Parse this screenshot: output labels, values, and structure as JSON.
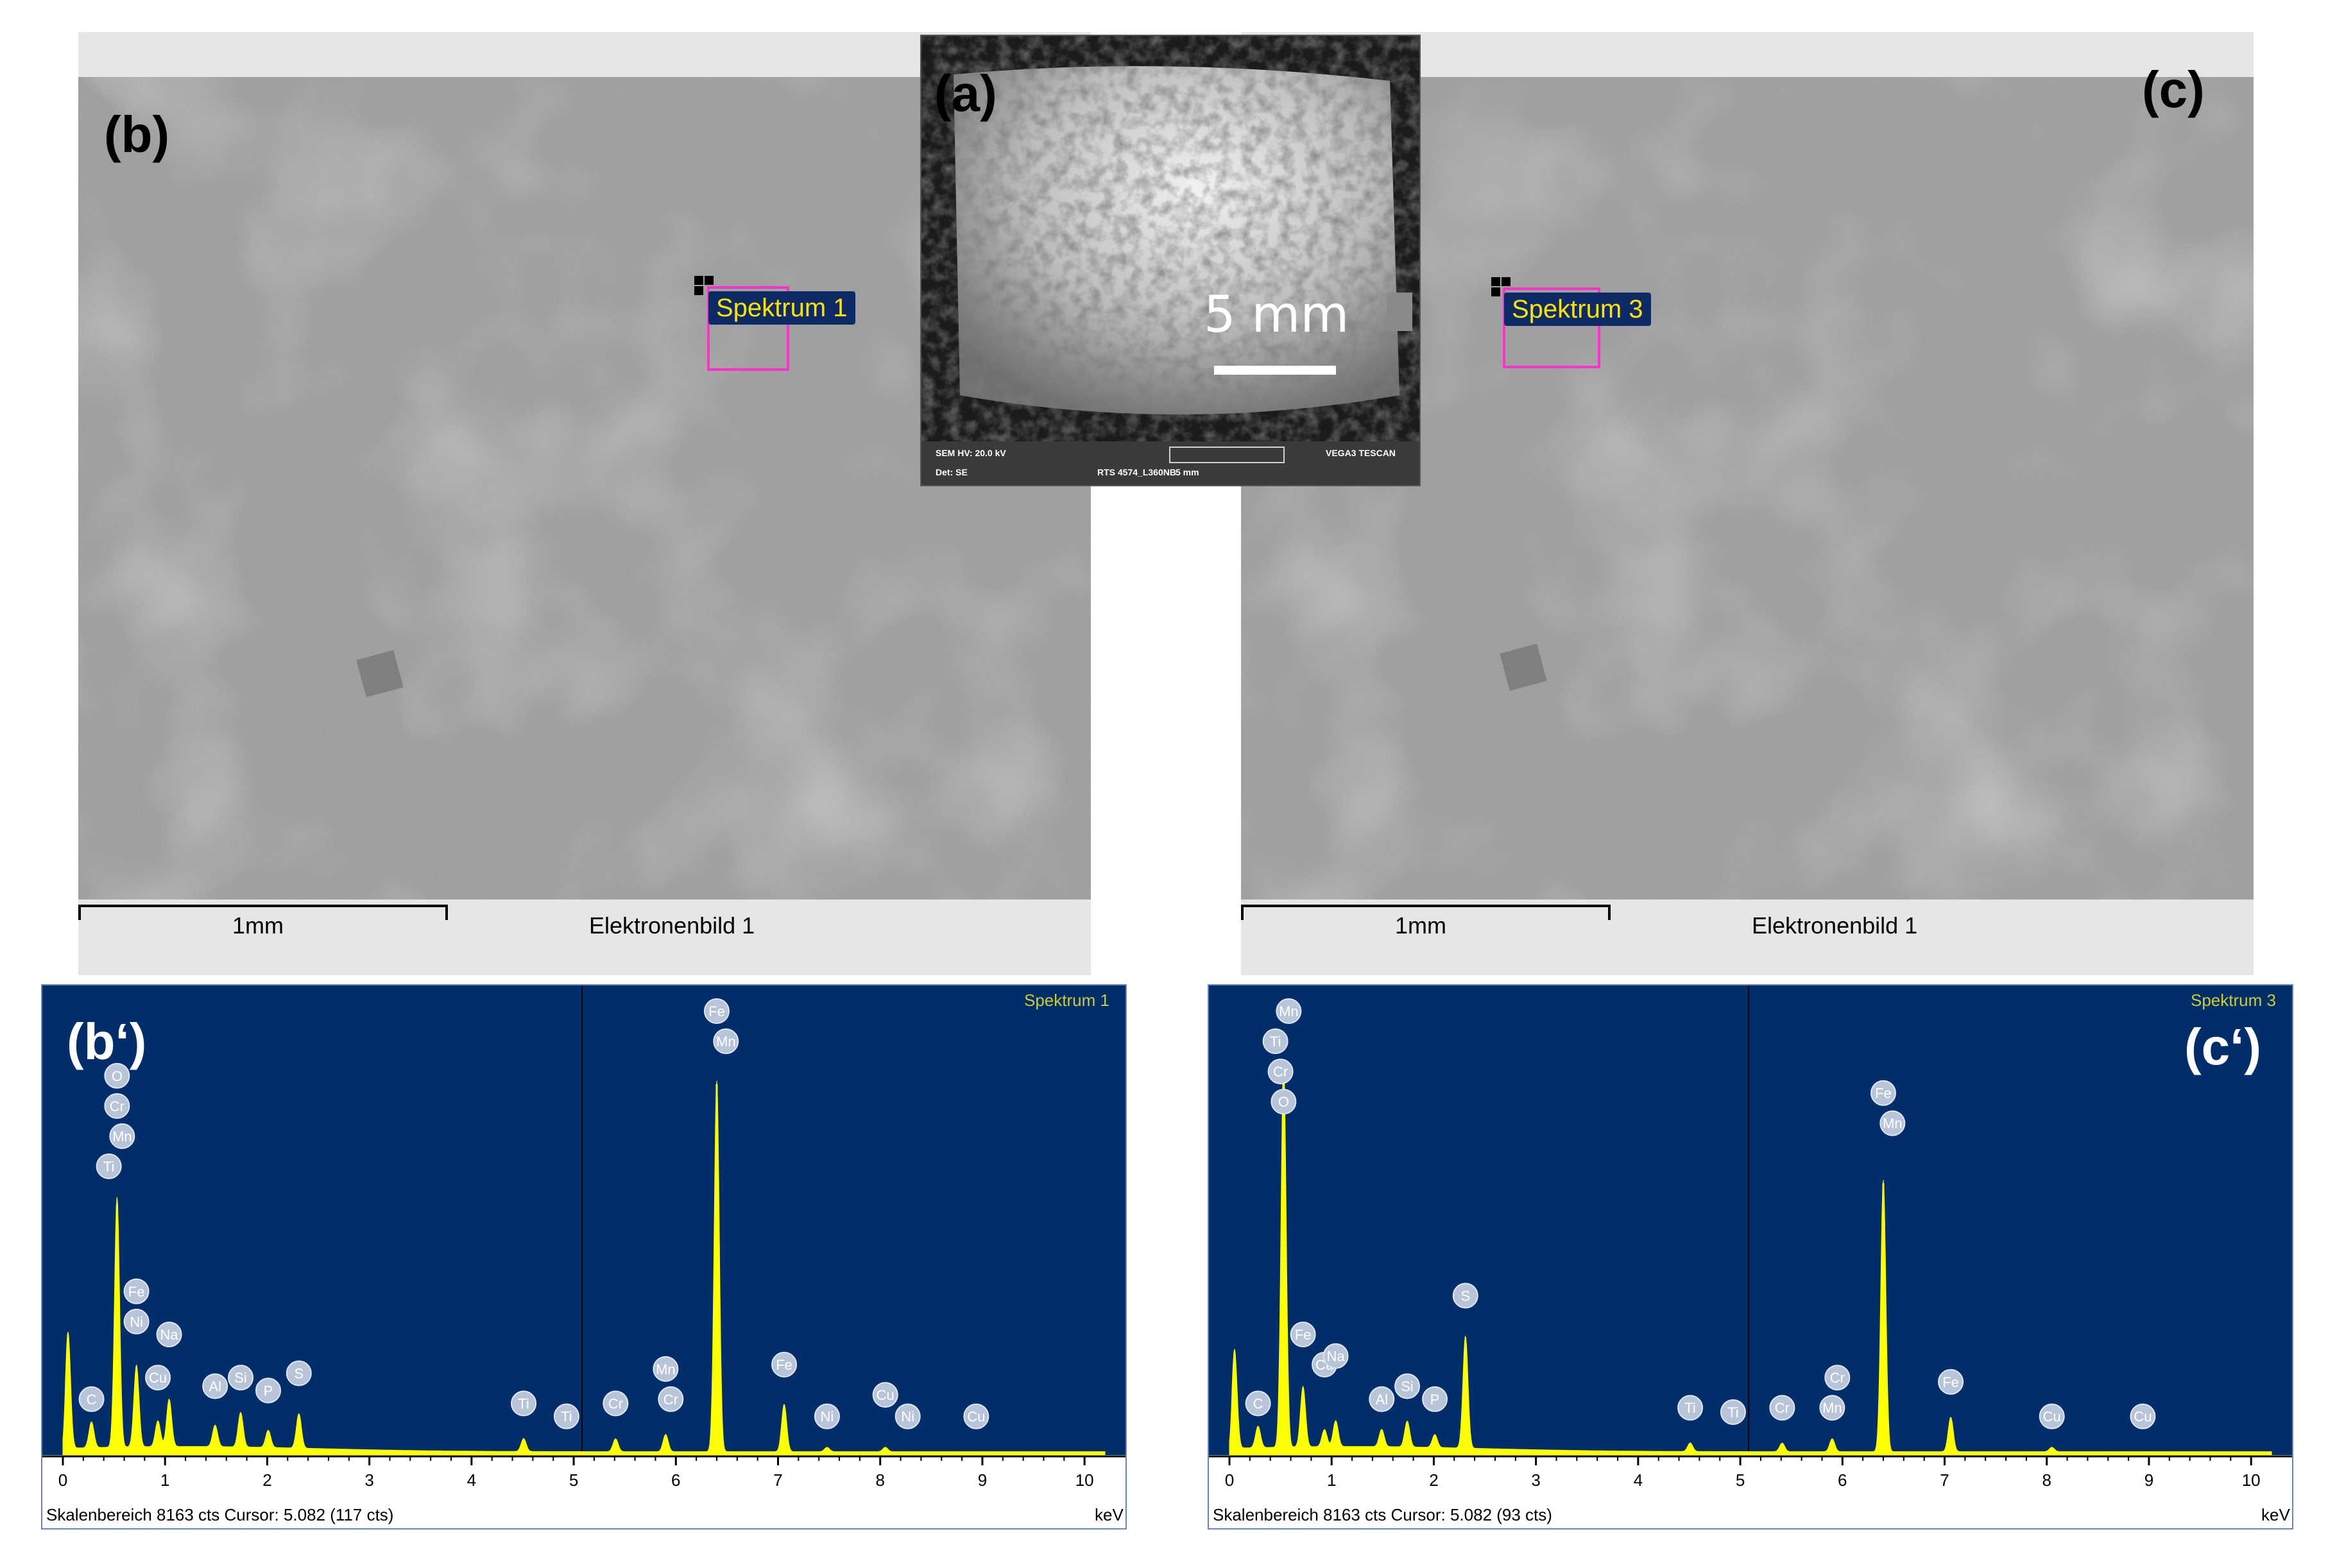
{
  "panels": {
    "a": {
      "letter": "(a)",
      "scale_text": "5 mm",
      "info": {
        "sem_hv": "SEM HV: 20.0 kV",
        "det": "Det: SE",
        "name": "RTS 4574_L360NB",
        "view": "5 mm",
        "device": "VEGA3 TESCAN"
      }
    },
    "b": {
      "letter": "(b)",
      "spectrum_label": "Spektrum  1",
      "scale_text": "1mm",
      "image_name": "Elektronenbild  1"
    },
    "c": {
      "letter": "(c)",
      "spectrum_label": "Spektrum  3",
      "scale_text": "1mm",
      "image_name": "Elektronenbild  1"
    }
  },
  "spectra": {
    "b_prime": {
      "letter": "(b‘)",
      "title": "Spektrum  1",
      "status": "Skalenbereich 8163 cts Cursor: 5.082  (117 cts)",
      "unit": "keV"
    },
    "c_prime": {
      "letter": "(c‘)",
      "title": "Spektrum  3",
      "status": "Skalenbereich 8163 cts Cursor: 5.082  (93 cts)",
      "unit": "keV"
    }
  },
  "colors": {
    "plot_bg": "#012e6b",
    "peak": "#ffff00",
    "title": "#cccc33",
    "marker": "#ff33cc"
  },
  "chart_data": [
    {
      "type": "area",
      "x_label": "keV",
      "xlim": [
        0,
        10.2
      ],
      "ticks": [
        "0",
        "1",
        "2",
        "3",
        "4",
        "5",
        "6",
        "7",
        "8",
        "9",
        "10"
      ],
      "cursor": 5.082,
      "peaks": [
        {
          "x": 0.05,
          "h": 0.27,
          "w": 0.035
        },
        {
          "x": 0.28,
          "h": 0.06,
          "w": 0.035
        },
        {
          "x": 0.53,
          "h": 0.58,
          "w": 0.035
        },
        {
          "x": 0.72,
          "h": 0.19,
          "w": 0.035
        },
        {
          "x": 0.93,
          "h": 0.06,
          "w": 0.035
        },
        {
          "x": 1.04,
          "h": 0.11,
          "w": 0.035
        },
        {
          "x": 1.49,
          "h": 0.05,
          "w": 0.035
        },
        {
          "x": 1.74,
          "h": 0.08,
          "w": 0.035
        },
        {
          "x": 2.01,
          "h": 0.04,
          "w": 0.035
        },
        {
          "x": 2.31,
          "h": 0.08,
          "w": 0.035
        },
        {
          "x": 4.51,
          "h": 0.03,
          "w": 0.035
        },
        {
          "x": 5.41,
          "h": 0.03,
          "w": 0.035
        },
        {
          "x": 5.9,
          "h": 0.04,
          "w": 0.035
        },
        {
          "x": 6.4,
          "h": 0.86,
          "w": 0.035
        },
        {
          "x": 7.06,
          "h": 0.11,
          "w": 0.035
        },
        {
          "x": 7.48,
          "h": 0.01,
          "w": 0.035
        },
        {
          "x": 8.05,
          "h": 0.01,
          "w": 0.035
        }
      ],
      "labels": [
        {
          "text": "C",
          "x": 0.28,
          "h": 0.1
        },
        {
          "text": "O",
          "x": 0.53,
          "h": 0.85
        },
        {
          "text": "Cr",
          "x": 0.53,
          "h": 0.78
        },
        {
          "text": "Mn",
          "x": 0.58,
          "h": 0.71
        },
        {
          "text": "Ti",
          "x": 0.45,
          "h": 0.64
        },
        {
          "text": "Fe",
          "x": 0.72,
          "h": 0.35
        },
        {
          "text": "Ni",
          "x": 0.72,
          "h": 0.28
        },
        {
          "text": "Cu",
          "x": 0.93,
          "h": 0.15
        },
        {
          "text": "Na",
          "x": 1.04,
          "h": 0.25
        },
        {
          "text": "Al",
          "x": 1.49,
          "h": 0.13
        },
        {
          "text": "Si",
          "x": 1.74,
          "h": 0.15
        },
        {
          "text": "P",
          "x": 2.01,
          "h": 0.12
        },
        {
          "text": "S",
          "x": 2.31,
          "h": 0.16
        },
        {
          "text": "Ti",
          "x": 4.51,
          "h": 0.09
        },
        {
          "text": "Ti",
          "x": 4.93,
          "h": 0.06
        },
        {
          "text": "Cr",
          "x": 5.41,
          "h": 0.09
        },
        {
          "text": "Mn",
          "x": 5.9,
          "h": 0.17
        },
        {
          "text": "Cr",
          "x": 5.95,
          "h": 0.1
        },
        {
          "text": "Fe",
          "x": 6.4,
          "h": 1.0
        },
        {
          "text": "Mn",
          "x": 6.49,
          "h": 0.93
        },
        {
          "text": "Fe",
          "x": 7.06,
          "h": 0.18
        },
        {
          "text": "Ni",
          "x": 7.48,
          "h": 0.06
        },
        {
          "text": "Cu",
          "x": 8.05,
          "h": 0.11
        },
        {
          "text": "Ni",
          "x": 8.27,
          "h": 0.06
        },
        {
          "text": "Cu",
          "x": 8.94,
          "h": 0.06
        }
      ]
    },
    {
      "type": "area",
      "x_label": "keV",
      "xlim": [
        0,
        10.2
      ],
      "ticks": [
        "0",
        "1",
        "2",
        "3",
        "4",
        "5",
        "6",
        "7",
        "8",
        "9",
        "10"
      ],
      "cursor": 5.082,
      "peaks": [
        {
          "x": 0.05,
          "h": 0.23,
          "w": 0.035
        },
        {
          "x": 0.28,
          "h": 0.05,
          "w": 0.035
        },
        {
          "x": 0.53,
          "h": 0.9,
          "w": 0.035
        },
        {
          "x": 0.72,
          "h": 0.14,
          "w": 0.035
        },
        {
          "x": 0.93,
          "h": 0.04,
          "w": 0.035
        },
        {
          "x": 1.04,
          "h": 0.06,
          "w": 0.035
        },
        {
          "x": 1.49,
          "h": 0.04,
          "w": 0.035
        },
        {
          "x": 1.74,
          "h": 0.06,
          "w": 0.035
        },
        {
          "x": 2.01,
          "h": 0.03,
          "w": 0.035
        },
        {
          "x": 2.31,
          "h": 0.26,
          "w": 0.035
        },
        {
          "x": 4.51,
          "h": 0.02,
          "w": 0.035
        },
        {
          "x": 5.41,
          "h": 0.02,
          "w": 0.035
        },
        {
          "x": 5.9,
          "h": 0.03,
          "w": 0.035
        },
        {
          "x": 6.4,
          "h": 0.63,
          "w": 0.035
        },
        {
          "x": 7.06,
          "h": 0.08,
          "w": 0.035
        },
        {
          "x": 8.05,
          "h": 0.01,
          "w": 0.035
        }
      ],
      "labels": [
        {
          "text": "C",
          "x": 0.28,
          "h": 0.09
        },
        {
          "text": "Mn",
          "x": 0.58,
          "h": 1.0
        },
        {
          "text": "Ti",
          "x": 0.45,
          "h": 0.93
        },
        {
          "text": "Cr",
          "x": 0.5,
          "h": 0.86
        },
        {
          "text": "O",
          "x": 0.53,
          "h": 0.79
        },
        {
          "text": "Fe",
          "x": 0.72,
          "h": 0.25
        },
        {
          "text": "Cu",
          "x": 0.93,
          "h": 0.18
        },
        {
          "text": "Na",
          "x": 1.04,
          "h": 0.2
        },
        {
          "text": "Al",
          "x": 1.49,
          "h": 0.1
        },
        {
          "text": "Si",
          "x": 1.74,
          "h": 0.13
        },
        {
          "text": "P",
          "x": 2.01,
          "h": 0.1
        },
        {
          "text": "S",
          "x": 2.31,
          "h": 0.34
        },
        {
          "text": "Ti",
          "x": 4.51,
          "h": 0.08
        },
        {
          "text": "Ti",
          "x": 4.93,
          "h": 0.07
        },
        {
          "text": "Cr",
          "x": 5.41,
          "h": 0.08
        },
        {
          "text": "Mn",
          "x": 5.9,
          "h": 0.08
        },
        {
          "text": "Cr",
          "x": 5.95,
          "h": 0.15
        },
        {
          "text": "Fe",
          "x": 6.4,
          "h": 0.81
        },
        {
          "text": "Mn",
          "x": 6.49,
          "h": 0.74
        },
        {
          "text": "Fe",
          "x": 7.06,
          "h": 0.14
        },
        {
          "text": "Cu",
          "x": 8.05,
          "h": 0.06
        },
        {
          "text": "Cu",
          "x": 8.94,
          "h": 0.06
        }
      ]
    }
  ]
}
